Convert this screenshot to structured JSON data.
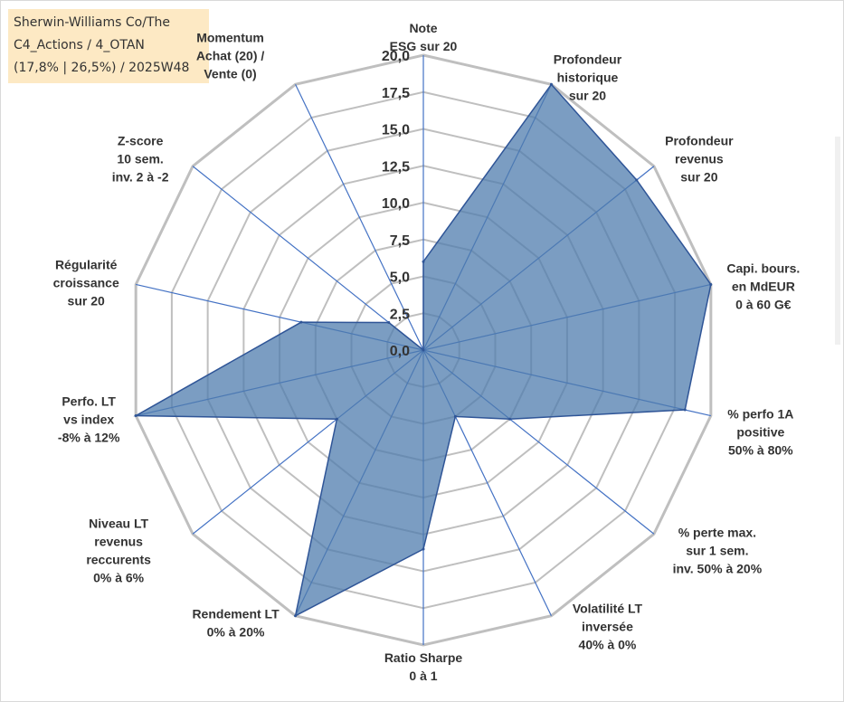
{
  "title_box": {
    "line1": "Sherwin-Williams Co/The",
    "line2": "C4_Actions / 4_OTAN",
    "line3": "(17,8% | 26,5%) / 2025W48"
  },
  "colors": {
    "fill": "#4f7cae",
    "stroke": "#2f5597",
    "grid": "#bfbfbf",
    "spoke": "#4472c4",
    "title_bg": "#fde9c4"
  },
  "chart_data": {
    "type": "radar",
    "r_range": [
      0,
      20
    ],
    "grid_levels": [
      2.5,
      5,
      7.5,
      10,
      12.5,
      15,
      17.5,
      20
    ],
    "tick_labels": [
      "0,0",
      "2,5",
      "5,0",
      "7,5",
      "10,0",
      "12,5",
      "15,0",
      "17,5",
      "20,0"
    ],
    "axes": [
      {
        "label": [
          "Note",
          "ESG sur 20"
        ],
        "value": 6.0
      },
      {
        "label": [
          "Profondeur",
          "historique",
          "sur 20"
        ],
        "value": 20.0
      },
      {
        "label": [
          "Profondeur",
          "revenus",
          "sur 20"
        ],
        "value": 18.5
      },
      {
        "label": [
          "Capi. bours.",
          "en MdEUR",
          "0 à 60 G€"
        ],
        "value": 20.0
      },
      {
        "label": [
          "% perfo 1A",
          "positive",
          "50% à 80%"
        ],
        "value": 18.2
      },
      {
        "label": [
          "% perte max.",
          "sur 1 sem.",
          "inv. 50% à 20%"
        ],
        "value": 7.5
      },
      {
        "label": [
          "Volatilité LT",
          "inversée",
          "40% à 0%"
        ],
        "value": 5.0
      },
      {
        "label": [
          "Ratio Sharpe",
          "0 à 1"
        ],
        "value": 13.5
      },
      {
        "label": [
          "Rendement LT",
          "0% à 20%"
        ],
        "value": 20.0
      },
      {
        "label": [
          "Niveau LT",
          "revenus",
          "reccurents",
          "0% à 6%"
        ],
        "value": 7.5
      },
      {
        "label": [
          "Perfo. LT",
          "vs index",
          "-8% à 12%"
        ],
        "value": 20.0
      },
      {
        "label": [
          "Régularité",
          "croissance",
          "sur 20"
        ],
        "value": 8.5
      },
      {
        "label": [
          "Z-score",
          "10 sem.",
          "inv. 2 à -2"
        ],
        "value": 3.0
      },
      {
        "label": [
          "Momentum",
          "Achat (20) /",
          "Vente (0)"
        ],
        "value": 0.0
      }
    ]
  }
}
